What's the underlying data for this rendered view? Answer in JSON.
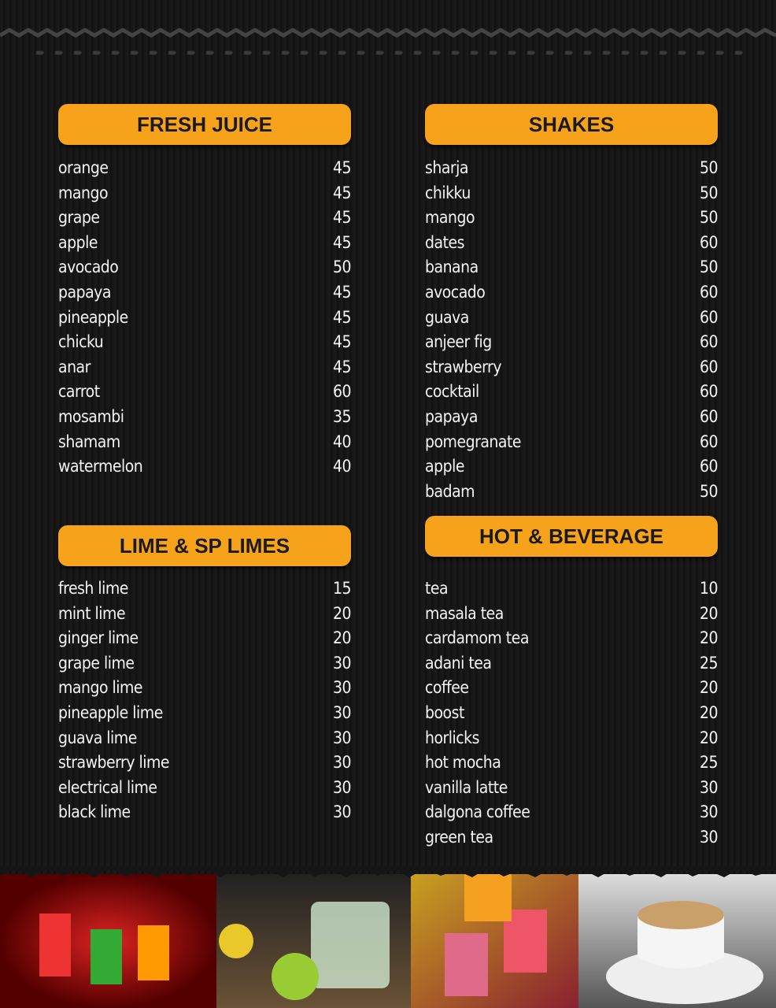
{
  "sections": [
    {
      "title": "FRESH JUICE",
      "items": [
        {
          "name": "orange",
          "price": "45"
        },
        {
          "name": "mango",
          "price": "45"
        },
        {
          "name": "grape",
          "price": "45"
        },
        {
          "name": "apple",
          "price": "45"
        },
        {
          "name": "avocado",
          "price": "50"
        },
        {
          "name": "papaya",
          "price": "45"
        },
        {
          "name": "pineapple",
          "price": "45"
        },
        {
          "name": "chicku",
          "price": "45"
        },
        {
          "name": "anar",
          "price": "45"
        },
        {
          "name": "carrot",
          "price": "60"
        },
        {
          "name": "mosambi",
          "price": "35"
        },
        {
          "name": "shamam",
          "price": "40"
        },
        {
          "name": "watermelon",
          "price": "40"
        }
      ]
    },
    {
      "title": "SHAKES",
      "items": [
        {
          "name": "sharja",
          "price": "50"
        },
        {
          "name": "chikku",
          "price": "50"
        },
        {
          "name": "mango",
          "price": "50"
        },
        {
          "name": "dates",
          "price": "60"
        },
        {
          "name": "banana",
          "price": "50"
        },
        {
          "name": "avocado",
          "price": "60"
        },
        {
          "name": "guava",
          "price": "60"
        },
        {
          "name": "anjeer fig",
          "price": "60"
        },
        {
          "name": "strawberry",
          "price": "60"
        },
        {
          "name": "cocktail",
          "price": "60"
        },
        {
          "name": "papaya",
          "price": "60"
        },
        {
          "name": "pomegranate",
          "price": "60"
        },
        {
          "name": "apple",
          "price": "60"
        },
        {
          "name": "badam",
          "price": "50"
        }
      ]
    },
    {
      "title": "LIME & SP LIMES",
      "items": [
        {
          "name": "fresh lime",
          "price": "15"
        },
        {
          "name": "mint lime",
          "price": "20"
        },
        {
          "name": "ginger lime",
          "price": "20"
        },
        {
          "name": "grape lime",
          "price": "30"
        },
        {
          "name": "mango lime",
          "price": "30"
        },
        {
          "name": "pineapple lime",
          "price": "30"
        },
        {
          "name": "guava lime",
          "price": "30"
        },
        {
          "name": "strawberry lime",
          "price": "30"
        },
        {
          "name": "electrical lime",
          "price": "30"
        },
        {
          "name": "black lime",
          "price": "30"
        }
      ]
    },
    {
      "title": "HOT & BEVERAGE",
      "items": [
        {
          "name": "tea",
          "price": "10"
        },
        {
          "name": "masala tea",
          "price": "20"
        },
        {
          "name": "cardamom tea",
          "price": "20"
        },
        {
          "name": "adani tea",
          "price": "25"
        },
        {
          "name": "coffee",
          "price": "20"
        },
        {
          "name": "boost",
          "price": "20"
        },
        {
          "name": "horlicks",
          "price": "20"
        },
        {
          "name": "hot mocha",
          "price": "25"
        },
        {
          "name": "vanilla latte",
          "price": "30"
        },
        {
          "name": "dalgona coffee",
          "price": "30"
        },
        {
          "name": "green tea",
          "price": "30"
        }
      ]
    }
  ]
}
